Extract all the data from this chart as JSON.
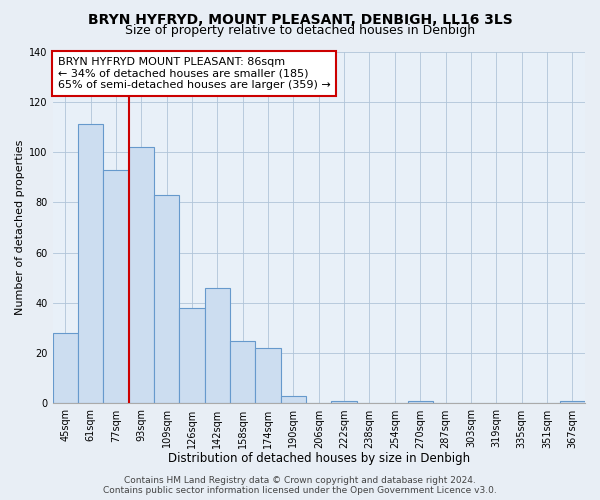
{
  "title": "BRYN HYFRYD, MOUNT PLEASANT, DENBIGH, LL16 3LS",
  "subtitle": "Size of property relative to detached houses in Denbigh",
  "xlabel": "Distribution of detached houses by size in Denbigh",
  "ylabel": "Number of detached properties",
  "bar_labels": [
    "45sqm",
    "61sqm",
    "77sqm",
    "93sqm",
    "109sqm",
    "126sqm",
    "142sqm",
    "158sqm",
    "174sqm",
    "190sqm",
    "206sqm",
    "222sqm",
    "238sqm",
    "254sqm",
    "270sqm",
    "287sqm",
    "303sqm",
    "319sqm",
    "335sqm",
    "351sqm",
    "367sqm"
  ],
  "bar_values": [
    28,
    111,
    93,
    102,
    83,
    38,
    46,
    25,
    22,
    3,
    0,
    1,
    0,
    0,
    1,
    0,
    0,
    0,
    0,
    0,
    1
  ],
  "bar_fill_color": "#ccddf0",
  "bar_edge_color": "#6699cc",
  "ylim": [
    0,
    140
  ],
  "yticks": [
    0,
    20,
    40,
    60,
    80,
    100,
    120,
    140
  ],
  "vline_x": 3.0,
  "annotation_title": "BRYN HYFRYD MOUNT PLEASANT: 86sqm",
  "annotation_line1": "← 34% of detached houses are smaller (185)",
  "annotation_line2": "65% of semi-detached houses are larger (359) →",
  "annotation_box_color": "#ffffff",
  "annotation_box_edge": "#cc0000",
  "vline_color": "#cc0000",
  "footer_line1": "Contains HM Land Registry data © Crown copyright and database right 2024.",
  "footer_line2": "Contains public sector information licensed under the Open Government Licence v3.0.",
  "bg_color": "#e8eef5",
  "plot_bg_color": "#e8f0f8",
  "title_fontsize": 10,
  "subtitle_fontsize": 9,
  "xlabel_fontsize": 8.5,
  "ylabel_fontsize": 8,
  "tick_fontsize": 7,
  "annotation_fontsize": 8,
  "footer_fontsize": 6.5
}
